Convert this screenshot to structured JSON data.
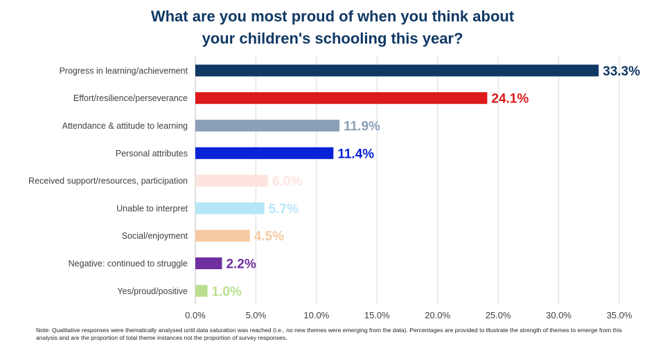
{
  "chart_data": {
    "type": "bar",
    "orientation": "horizontal",
    "title_lines": [
      "What are you most proud of when you think about",
      "your children's schooling this year?"
    ],
    "categories": [
      "Progress in learning/achievement",
      "Effort/resilience/perseverance",
      "Attendance & attitude to learning",
      "Personal attributes",
      "Received support/resources, participation",
      "Unable to interpret",
      "Social/enjoyment",
      "Negative: continued to struggle",
      "Yes/proud/positive"
    ],
    "values": [
      33.3,
      24.1,
      11.9,
      11.4,
      6.0,
      5.7,
      4.5,
      2.2,
      1.0
    ],
    "value_labels": [
      "33.3%",
      "24.1%",
      "11.9%",
      "11.4%",
      "6.0%",
      "5.7%",
      "4.5%",
      "2.2%",
      "1.0%"
    ],
    "colors": [
      "#0f3864",
      "#dc1a1a",
      "#8aa0b8",
      "#0a22d8",
      "#fde3de",
      "#b6e6f8",
      "#f6caa0",
      "#7030a0",
      "#b9df8e"
    ],
    "xlim": [
      0,
      35
    ],
    "xticks": [
      0,
      5,
      10,
      15,
      20,
      25,
      30,
      35
    ],
    "xtick_labels": [
      "0.0%",
      "5.0%",
      "10.0%",
      "15.0%",
      "20.0%",
      "25.0%",
      "30.0%",
      "35.0%"
    ],
    "grid": true,
    "xlabel": "",
    "ylabel": ""
  },
  "note": "Note: Qualitative responses were thematically analysed until data saturation was reached (i.e., no new themes were emerging from the data). Percentages are provided to illustrate the strength of themes to emerge from this analysis and are the proportion of total theme instances not the proportion of survey responses."
}
